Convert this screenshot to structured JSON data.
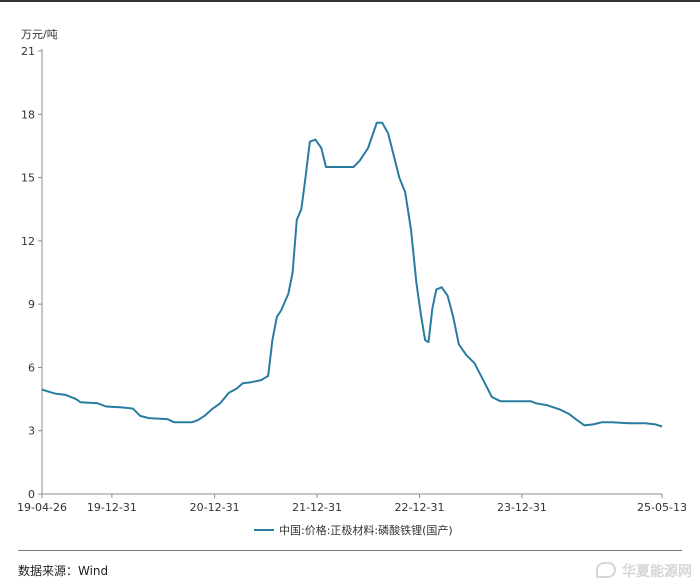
{
  "chart_data": {
    "type": "line",
    "unit_label": "万元/吨",
    "y_ticks": [
      "0",
      "3",
      "6",
      "9",
      "12",
      "15",
      "18",
      "21"
    ],
    "ylim": [
      0,
      21
    ],
    "x_ticks": [
      "19-04-26",
      "19-12-31",
      "20-12-31",
      "21-12-31",
      "22-12-31",
      "23-12-31",
      "25-05-13"
    ],
    "x_tick_dates": [
      "2019-04-26",
      "2019-12-31",
      "2020-12-31",
      "2021-12-31",
      "2022-12-31",
      "2023-12-31",
      "2025-05-13"
    ],
    "xlim": [
      "2019-04-26",
      "2025-05-13"
    ],
    "grid": false,
    "legend_position": "bottom",
    "series": [
      {
        "name": "中国:价格:正极材料:磷酸铁锂(国产)",
        "color": "#2a7ba0",
        "points": [
          [
            "2019-04-26",
            4.95
          ],
          [
            "2019-05-20",
            4.85
          ],
          [
            "2019-06-15",
            4.75
          ],
          [
            "2019-07-20",
            4.7
          ],
          [
            "2019-08-25",
            4.5
          ],
          [
            "2019-09-10",
            4.35
          ],
          [
            "2019-11-10",
            4.3
          ],
          [
            "2019-12-10",
            4.15
          ],
          [
            "2020-02-10",
            4.1
          ],
          [
            "2020-03-15",
            4.05
          ],
          [
            "2020-04-10",
            3.7
          ],
          [
            "2020-05-10",
            3.6
          ],
          [
            "2020-07-15",
            3.55
          ],
          [
            "2020-08-10",
            3.4
          ],
          [
            "2020-10-10",
            3.4
          ],
          [
            "2020-11-01",
            3.5
          ],
          [
            "2020-11-25",
            3.7
          ],
          [
            "2020-12-20",
            4.0
          ],
          [
            "2021-01-20",
            4.3
          ],
          [
            "2021-02-20",
            4.8
          ],
          [
            "2021-03-20",
            5.0
          ],
          [
            "2021-04-10",
            5.25
          ],
          [
            "2021-05-10",
            5.3
          ],
          [
            "2021-06-15",
            5.4
          ],
          [
            "2021-07-10",
            5.6
          ],
          [
            "2021-07-25",
            7.3
          ],
          [
            "2021-08-10",
            8.4
          ],
          [
            "2021-08-25",
            8.7
          ],
          [
            "2021-09-20",
            9.5
          ],
          [
            "2021-10-05",
            10.5
          ],
          [
            "2021-10-20",
            13.0
          ],
          [
            "2021-11-05",
            13.5
          ],
          [
            "2021-11-20",
            15.0
          ],
          [
            "2021-12-05",
            16.7
          ],
          [
            "2021-12-25",
            16.8
          ],
          [
            "2022-01-15",
            16.4
          ],
          [
            "2022-02-01",
            15.5
          ],
          [
            "2022-04-01",
            15.5
          ],
          [
            "2022-05-10",
            15.5
          ],
          [
            "2022-06-01",
            15.8
          ],
          [
            "2022-07-01",
            16.4
          ],
          [
            "2022-08-01",
            17.6
          ],
          [
            "2022-08-20",
            17.6
          ],
          [
            "2022-09-10",
            17.1
          ],
          [
            "2022-10-01",
            16.0
          ],
          [
            "2022-10-20",
            15.0
          ],
          [
            "2022-11-10",
            14.3
          ],
          [
            "2022-12-01",
            12.5
          ],
          [
            "2022-12-20",
            10.0
          ],
          [
            "2023-01-05",
            8.5
          ],
          [
            "2023-01-20",
            7.3
          ],
          [
            "2023-02-01",
            7.2
          ],
          [
            "2023-02-15",
            8.8
          ],
          [
            "2023-03-01",
            9.7
          ],
          [
            "2023-03-20",
            9.8
          ],
          [
            "2023-04-10",
            9.4
          ],
          [
            "2023-04-30",
            8.4
          ],
          [
            "2023-05-20",
            7.1
          ],
          [
            "2023-06-15",
            6.6
          ],
          [
            "2023-07-15",
            6.2
          ],
          [
            "2023-08-15",
            5.4
          ],
          [
            "2023-09-15",
            4.6
          ],
          [
            "2023-10-15",
            4.4
          ],
          [
            "2023-12-15",
            4.4
          ],
          [
            "2024-01-31",
            4.4
          ],
          [
            "2024-02-20",
            4.3
          ],
          [
            "2024-04-01",
            4.2
          ],
          [
            "2024-05-15",
            4.0
          ],
          [
            "2024-06-15",
            3.8
          ],
          [
            "2024-07-15",
            3.5
          ],
          [
            "2024-08-10",
            3.25
          ],
          [
            "2024-09-10",
            3.3
          ],
          [
            "2024-10-10",
            3.4
          ],
          [
            "2024-11-15",
            3.4
          ],
          [
            "2025-01-15",
            3.35
          ],
          [
            "2025-03-15",
            3.35
          ],
          [
            "2025-04-20",
            3.3
          ],
          [
            "2025-05-13",
            3.2
          ]
        ]
      }
    ]
  },
  "footer": {
    "source": "数据来源：Wind",
    "watermark": "华夏能源网"
  }
}
